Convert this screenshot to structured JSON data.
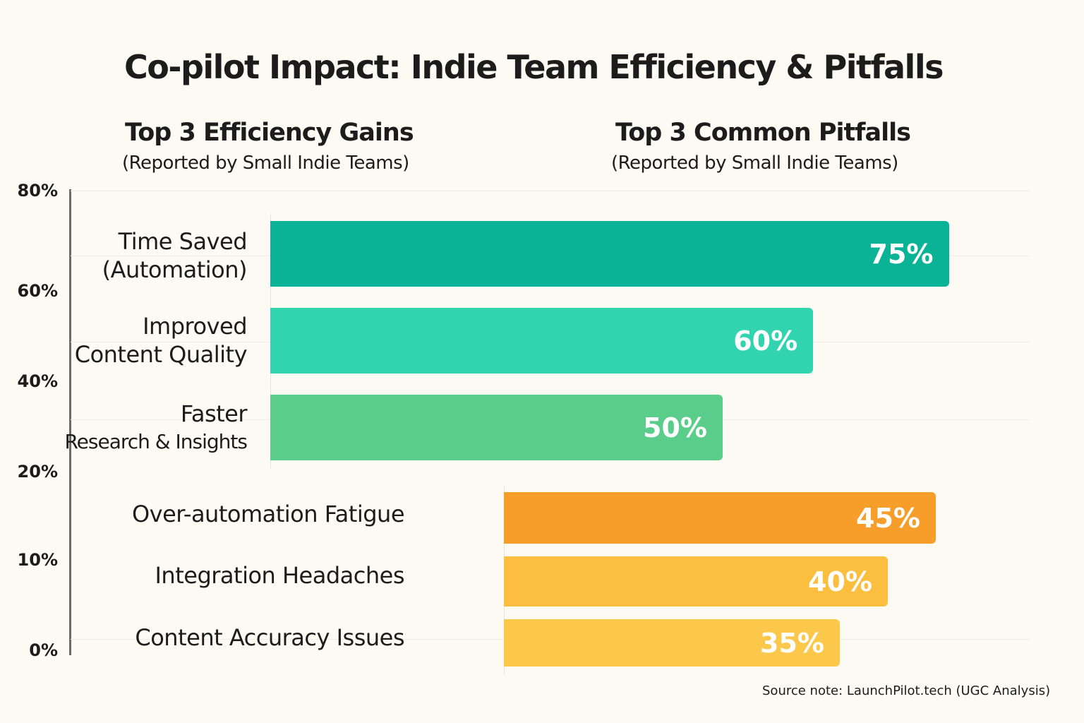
{
  "chart_data": {
    "type": "bar",
    "orientation": "horizontal",
    "title": "Co-pilot Impact: Indie Team Efficiency & Pitfalls",
    "y_axis_ticks": [
      "80%",
      "60%",
      "40%",
      "20%",
      "10%",
      "0%"
    ],
    "grid": true,
    "groups": [
      {
        "heading": "Top 3 Efficiency Gains",
        "subheading": "(Reported by Small Indie Teams)",
        "categories": [
          [
            "Time Saved",
            "(Automation)"
          ],
          [
            "Improved",
            "Content Quality"
          ],
          [
            "Faster",
            "Research & Insights"
          ]
        ],
        "values": [
          75,
          60,
          50
        ],
        "labels": [
          "75%",
          "60%",
          "50%"
        ],
        "colors": [
          "#0bb396",
          "#31d4ae",
          "#5bcd8a"
        ]
      },
      {
        "heading": "Top 3 Common Pitfalls",
        "subheading": "(Reported by Small Indie Teams)",
        "categories": [
          [
            "Over-automation Fatigue"
          ],
          [
            "Integration Headaches"
          ],
          [
            "Content Accuracy Issues"
          ]
        ],
        "values": [
          45,
          40,
          35
        ],
        "labels": [
          "45%",
          "40%",
          "35%"
        ],
        "colors": [
          "#f79e2a",
          "#fbbe3e",
          "#fcc84b"
        ]
      }
    ],
    "source": "Source note: LaunchPilot.tech (UGC Analysis)"
  }
}
